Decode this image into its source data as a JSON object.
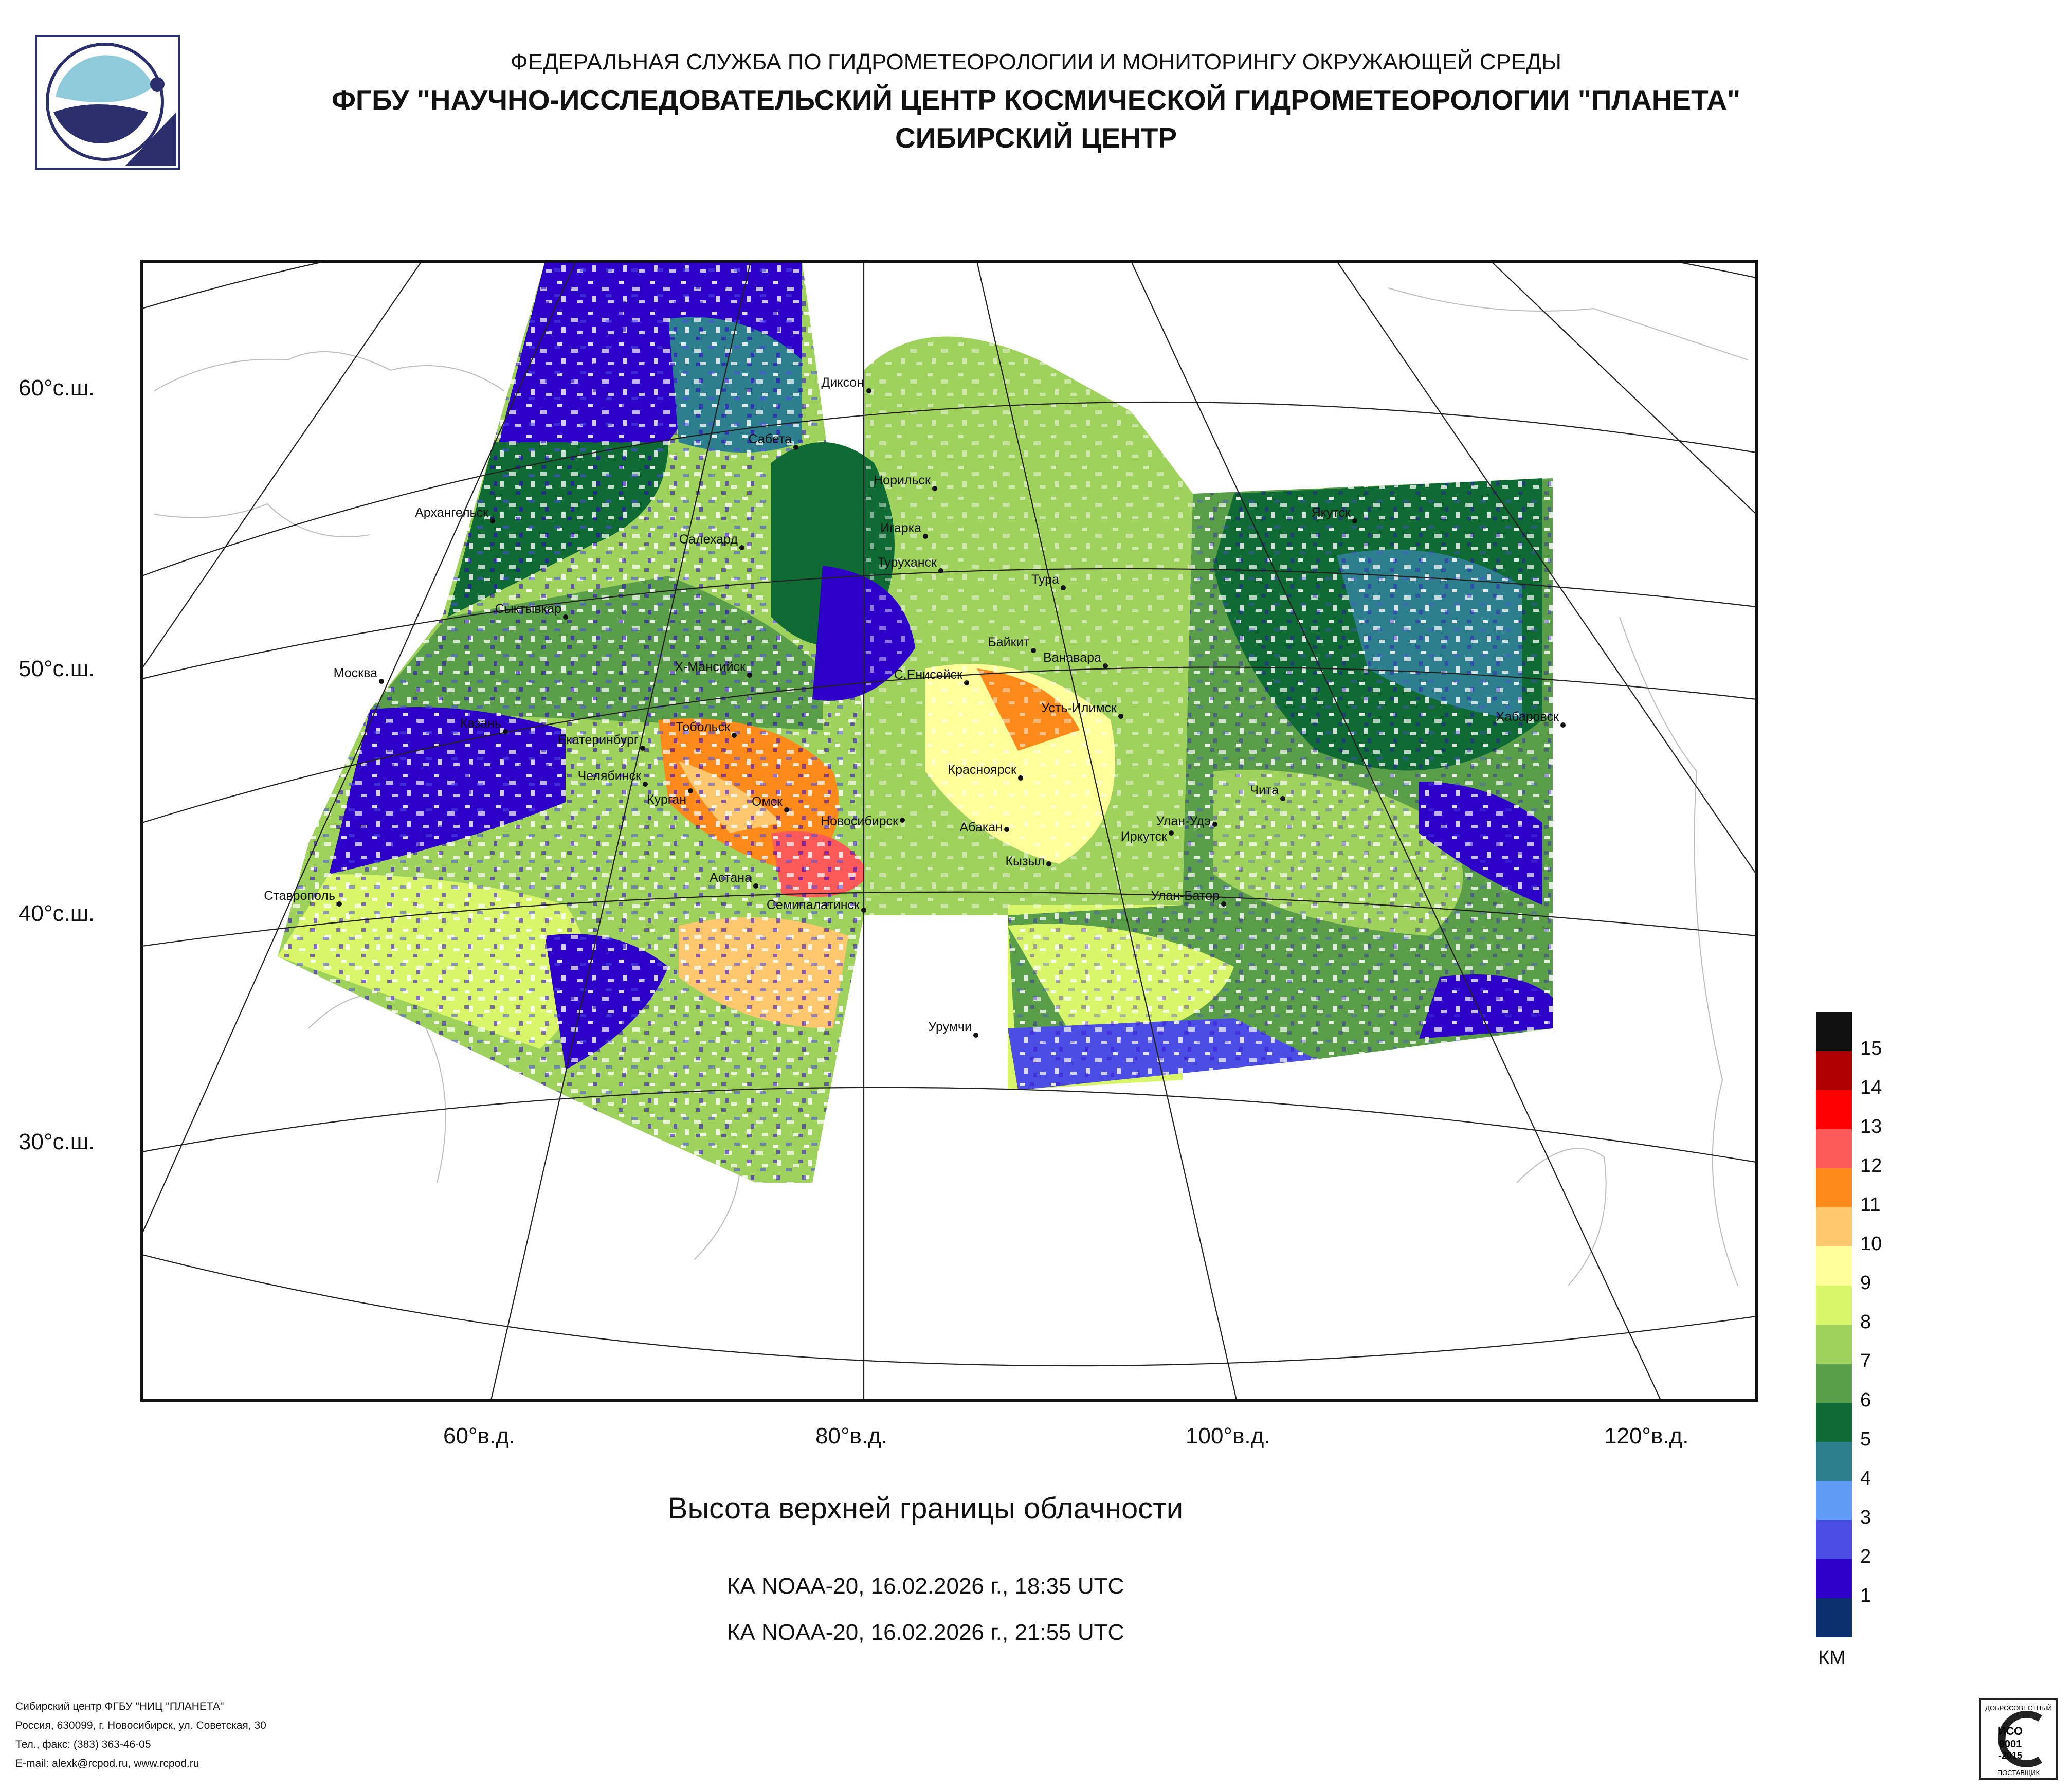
{
  "header": {
    "line1": "ФЕДЕРАЛЬНАЯ СЛУЖБА ПО ГИДРОМЕТЕОРОЛОГИИ И МОНИТОРИНГУ ОКРУЖАЮЩЕЙ СРЕДЫ",
    "line2": "ФГБУ \"НАУЧНО-ИССЛЕДОВАТЕЛЬСКИЙ ЦЕНТР КОСМИЧЕСКОЙ ГИДРОМЕТЕОРОЛОГИИ \"ПЛАНЕТА\"",
    "line3": "СИБИРСКИЙ ЦЕНТР"
  },
  "map": {
    "lat_labels": [
      "60°с.ш.",
      "50°с.ш.",
      "40°с.ш.",
      "30°с.ш."
    ],
    "lon_labels": [
      "60°в.д.",
      "80°в.д.",
      "100°в.д.",
      "120°в.д."
    ],
    "cities": [
      "Диксон",
      "Сабета",
      "Норильск",
      "Архангельск",
      "Игарка",
      "Салехард",
      "Туруханск",
      "Тура",
      "Якутск",
      "Сыктывкар",
      "Байкит",
      "Ванавара",
      "Москва",
      "Х-Мансийск",
      "С.Енисейск",
      "Усть-Илимск",
      "Хабаровск",
      "Казань",
      "Тобольск",
      "Екатеринбург",
      "Челябинск",
      "Курган",
      "Красноярск",
      "Чита",
      "Омск",
      "Новосибирск",
      "Абакан",
      "Улан-Удэ",
      "Иркутск",
      "Кызыл",
      "Астана",
      "Ставрополь",
      "Семипалатинск",
      "Улан-Батор",
      "Урумчи"
    ]
  },
  "product": {
    "title": "Высота верхней границы облачности",
    "passes": [
      "КА NOAA-20, 16.02.2026 г., 18:35 UTC",
      "КА NOAA-20, 16.02.2026 г., 21:55 UTC"
    ]
  },
  "legend": {
    "unit": "КМ",
    "labels": [
      "15",
      "14",
      "13",
      "12",
      "11",
      "10",
      "9",
      "8",
      "7",
      "6",
      "5",
      "4",
      "3",
      "2",
      "1"
    ],
    "colors": [
      "#111111",
      "#b00000",
      "#ff0000",
      "#ff5a5a",
      "#ff8a1c",
      "#ffc86e",
      "#ffff99",
      "#d9f56a",
      "#9ed25c",
      "#5a9e4a",
      "#0f6a34",
      "#2e7f8e",
      "#5f9cf7",
      "#4b4de4",
      "#2d00c8",
      "#0c2f6e"
    ]
  },
  "footer": {
    "lines": [
      "Сибирский центр ФГБУ \"НИЦ \"ПЛАНЕТА\"",
      "Россия, 630099, г. Новосибирск, ул. Советская, 30",
      "Тел., факс: (383) 363-46-05",
      "E-mail: alexk@rcpod.ru, www.rcpod.ru"
    ]
  },
  "cert": {
    "top": "ДОБРОСОВЕСТНЫЙ",
    "line1": "ИСО",
    "line2": "9001",
    "line3": "-2015",
    "bottom": "ПОСТАВЩИК"
  }
}
